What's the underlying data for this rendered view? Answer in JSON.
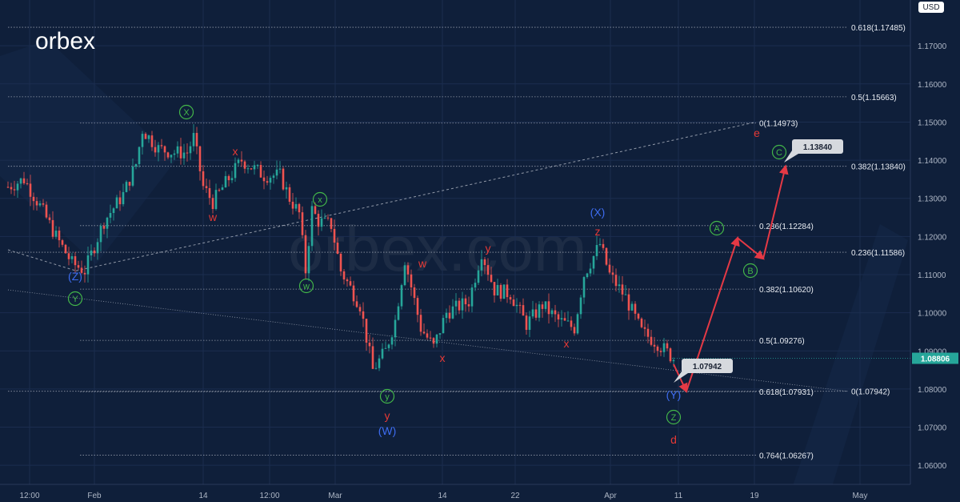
{
  "brand": {
    "logo": "orbex",
    "watermark": "orbex.com"
  },
  "chart_data": {
    "type": "candlestick",
    "currency": "USD",
    "ylim": [
      1.055,
      1.182
    ],
    "y_ticks": [
      "1.06000",
      "1.07000",
      "1.08000",
      "1.09000",
      "1.10000",
      "1.11000",
      "1.12000",
      "1.13000",
      "1.14000",
      "1.15000",
      "1.16000",
      "1.17000"
    ],
    "x_ticks": [
      "12:00",
      "Feb",
      "14",
      "12:00",
      "Mar",
      "14",
      "22",
      "Apr",
      "11",
      "19",
      "May"
    ],
    "last_price": "1.08806",
    "fib_levels": [
      {
        "label": "0.618(1.17485)",
        "value": 1.17485,
        "group": "right"
      },
      {
        "label": "0.5(1.15663)",
        "value": 1.15663,
        "group": "right"
      },
      {
        "label": "0(1.14973)",
        "value": 1.14973,
        "group": "mid"
      },
      {
        "label": "0.382(1.13840)",
        "value": 1.1384,
        "group": "right"
      },
      {
        "label": "0.236(1.12284)",
        "value": 1.12284,
        "group": "mid"
      },
      {
        "label": "0.236(1.11586)",
        "value": 1.11586,
        "group": "right"
      },
      {
        "label": "0.382(1.10620)",
        "value": 1.1062,
        "group": "mid"
      },
      {
        "label": "0.5(1.09276)",
        "value": 1.09276,
        "group": "mid"
      },
      {
        "label": "0.618(1.07931)",
        "value": 1.07931,
        "group": "mid"
      },
      {
        "label": "0(1.07942)",
        "value": 1.07942,
        "group": "right"
      },
      {
        "label": "0.764(1.06267)",
        "value": 1.06267,
        "group": "mid"
      }
    ],
    "price_callouts": [
      "1.07942",
      "1.13840"
    ],
    "wave_labels": {
      "red": [
        "w",
        "x",
        "w",
        "y",
        "x",
        "x",
        "z",
        "y",
        "d",
        "e"
      ],
      "blue": [
        "(Z)",
        "(W)",
        "(X)",
        "(Y)"
      ],
      "green": [
        "Y",
        "X",
        "x",
        "w",
        "y",
        "Z",
        "A",
        "B",
        "C"
      ]
    },
    "price_path": [
      [
        0,
        1.133
      ],
      [
        5,
        1.135
      ],
      [
        10,
        1.128
      ],
      [
        15,
        1.12
      ],
      [
        20,
        1.113
      ],
      [
        24,
        1.111
      ],
      [
        30,
        1.124
      ],
      [
        36,
        1.131
      ],
      [
        40,
        1.139
      ],
      [
        42,
        1.148
      ],
      [
        47,
        1.143
      ],
      [
        52,
        1.142
      ],
      [
        56,
        1.142
      ],
      [
        58,
        1.146
      ],
      [
        61,
        1.133
      ],
      [
        64,
        1.129
      ],
      [
        68,
        1.134
      ],
      [
        73,
        1.14
      ],
      [
        80,
        1.136
      ],
      [
        85,
        1.136
      ],
      [
        88,
        1.13
      ],
      [
        91,
        1.126
      ],
      [
        93,
        1.111
      ],
      [
        95,
        1.127
      ],
      [
        97,
        1.124
      ],
      [
        101,
        1.123
      ],
      [
        104,
        1.111
      ],
      [
        110,
        1.102
      ],
      [
        114,
        1.085
      ],
      [
        118,
        1.09
      ],
      [
        121,
        1.098
      ],
      [
        124,
        1.114
      ],
      [
        129,
        1.096
      ],
      [
        133,
        1.091
      ],
      [
        137,
        1.1
      ],
      [
        144,
        1.103
      ],
      [
        148,
        1.116
      ],
      [
        152,
        1.106
      ],
      [
        157,
        1.105
      ],
      [
        162,
        1.097
      ],
      [
        167,
        1.102
      ],
      [
        172,
        1.098
      ],
      [
        177,
        1.096
      ],
      [
        180,
        1.11
      ],
      [
        185,
        1.118
      ],
      [
        188,
        1.11
      ],
      [
        193,
        1.104
      ],
      [
        198,
        1.095
      ],
      [
        203,
        1.092
      ],
      [
        208,
        1.088
      ]
    ],
    "projection": [
      [
        208,
        1.0865
      ],
      [
        212,
        1.0794
      ],
      [
        228,
        1.1196
      ],
      [
        236,
        1.1142
      ],
      [
        243,
        1.1384
      ]
    ]
  }
}
